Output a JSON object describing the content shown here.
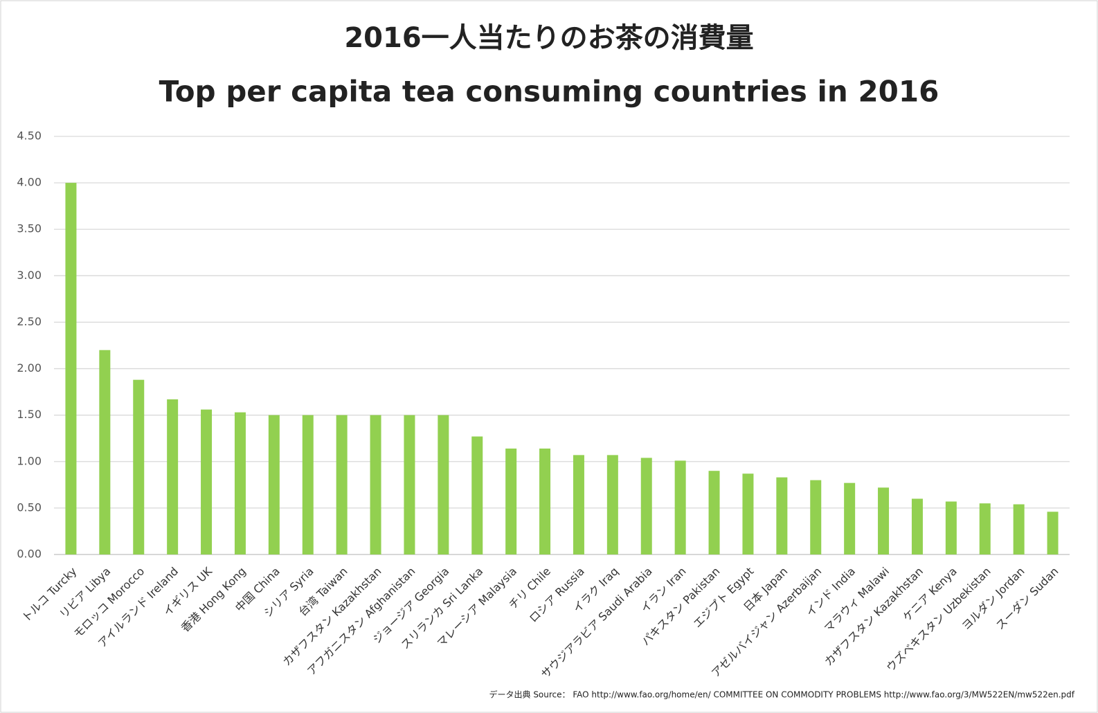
{
  "chart_data": {
    "type": "bar",
    "title": "2016一人当たりのお茶の消費量",
    "subtitle": "Top per capita tea consuming countries in 2016",
    "source": "データ出典 Source： FAO http://www.fao.org/home/en/ COMMITTEE ON COMMODITY PROBLEMS   http://www.fao.org/3/MW522EN/mw522en.pdf",
    "categories": [
      "トルコ Turcky",
      "リビア Libya",
      "モロッコ Morocco",
      "アイルランド Ireland",
      "イギリス UK",
      "香港 Hong Kong",
      "中国 China",
      "シリア Syria",
      "台湾 Taiwan",
      "カザフスタン Kazakhstan",
      "アフガニスタン Afghanistan",
      "ジョージア Georgia",
      "スリランカ Sri Lanka",
      "マレーシア Malaysia",
      "チリ Chile",
      "ロシア Russia",
      "イラク Iraq",
      "サウジアラビア Saudi Arabia",
      "イラン Iran",
      "パキスタン Pakistan",
      "エジプト Egypt",
      "日本 Japan",
      "アゼルバイジャン Azerbaijan",
      "インド India",
      "マラウィ Malawi",
      "カザフスタン Kazakhstan",
      "ケニア Kenya",
      "ウズベキスタン Uzbekistan",
      "ヨルダン Jordan",
      "スーダン Sudan"
    ],
    "values": [
      4.0,
      2.2,
      1.88,
      1.67,
      1.56,
      1.53,
      1.5,
      1.5,
      1.5,
      1.5,
      1.5,
      1.5,
      1.27,
      1.14,
      1.14,
      1.07,
      1.07,
      1.04,
      1.01,
      0.9,
      0.87,
      0.83,
      0.8,
      0.77,
      0.72,
      0.6,
      0.57,
      0.55,
      0.54,
      0.46
    ],
    "color": "#92d050",
    "ylim": [
      0,
      4.5
    ],
    "yticks": [
      {
        "value": 0,
        "label": "0.00"
      },
      {
        "value": 0.5,
        "label": "0.50"
      },
      {
        "value": 1,
        "label": "1.00"
      },
      {
        "value": 1.5,
        "label": "1.50"
      },
      {
        "value": 2,
        "label": "2.00"
      },
      {
        "value": 2.5,
        "label": "2.50"
      },
      {
        "value": 3,
        "label": "3.00"
      },
      {
        "value": 3.5,
        "label": "3.50"
      },
      {
        "value": 4,
        "label": "4.00"
      },
      {
        "value": 4.5,
        "label": "4.50"
      }
    ],
    "grid": true
  }
}
